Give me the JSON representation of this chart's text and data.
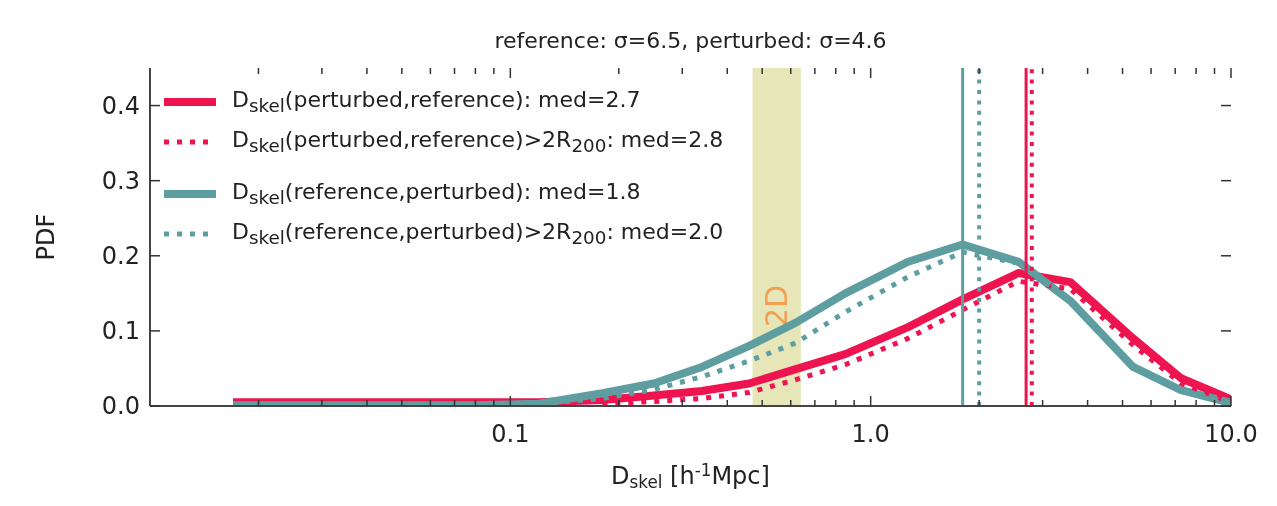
{
  "chart_data": {
    "type": "line",
    "subtitle": "reference: σ=6.5, perturbed: σ=4.6",
    "xlabel": "D$_{skel}$ [h$^{-1}$Mpc]",
    "ylabel": "PDF",
    "log": "x",
    "xlim": [
      0.01,
      10
    ],
    "ylim": [
      0,
      0.45
    ],
    "xticks": [
      {
        "value": 0.02,
        "label": null
      },
      {
        "value": 0.03,
        "label": null
      },
      {
        "value": 0.04,
        "label": null
      },
      {
        "value": 0.05,
        "label": null
      },
      {
        "value": 0.06,
        "label": null
      },
      {
        "value": 0.07,
        "label": null
      },
      {
        "value": 0.08,
        "label": null
      },
      {
        "value": 0.09,
        "label": null
      },
      {
        "value": 0.1,
        "label": "0.1"
      },
      {
        "value": 0.2,
        "label": null
      },
      {
        "value": 0.3,
        "label": null
      },
      {
        "value": 0.4,
        "label": null
      },
      {
        "value": 0.5,
        "label": null
      },
      {
        "value": 0.6,
        "label": null
      },
      {
        "value": 0.7,
        "label": null
      },
      {
        "value": 0.8,
        "label": null
      },
      {
        "value": 0.9,
        "label": null
      },
      {
        "value": 1,
        "label": "1.0"
      },
      {
        "value": 2,
        "label": null
      },
      {
        "value": 3,
        "label": null
      },
      {
        "value": 4,
        "label": null
      },
      {
        "value": 5,
        "label": null
      },
      {
        "value": 6,
        "label": null
      },
      {
        "value": 7,
        "label": null
      },
      {
        "value": 8,
        "label": null
      },
      {
        "value": 9,
        "label": null
      },
      {
        "value": 10,
        "label": "10.0"
      }
    ],
    "yticks": [
      {
        "value": 0,
        "label": "0.0"
      },
      {
        "value": 0.1,
        "label": "0.1"
      },
      {
        "value": 0.2,
        "label": "0.2"
      },
      {
        "value": 0.3,
        "label": "0.3"
      },
      {
        "value": 0.4,
        "label": "0.4"
      }
    ],
    "x": [
      0.017,
      0.03,
      0.05,
      0.08,
      0.12,
      0.18,
      0.25,
      0.34,
      0.46,
      0.62,
      0.85,
      1.27,
      1.8,
      2.57,
      3.58,
      5.35,
      7.27,
      10
    ],
    "series": [
      {
        "name": "D$_{skel}$(perturbed,reference): med=2.7",
        "color": "#ee1450",
        "line_style": "solid",
        "values": [
          0.005,
          0.005,
          0.005,
          0.005,
          0.005,
          0.008,
          0.014,
          0.02,
          0.03,
          0.049,
          0.069,
          0.105,
          0.142,
          0.177,
          0.165,
          0.09,
          0.037,
          0.009
        ]
      },
      {
        "name": "D$_{skel}$(perturbed,reference)>2R$_{200}$: med=2.8",
        "color": "#ee1450",
        "line_style": "dotted",
        "values": [
          null,
          null,
          null,
          null,
          null,
          0.003,
          0.006,
          0.01,
          0.018,
          0.035,
          0.055,
          0.09,
          0.128,
          0.166,
          0.156,
          0.081,
          0.03,
          0.005
        ]
      },
      {
        "name": "D$_{skel}$(reference,perturbed): med=1.8",
        "color": "#5f9ea0",
        "line_style": "solid",
        "values": [
          0.001,
          0.001,
          0.001,
          0.001,
          0.003,
          0.017,
          0.03,
          0.052,
          0.08,
          0.111,
          0.15,
          0.192,
          0.215,
          0.192,
          0.14,
          0.052,
          0.021,
          0.004
        ]
      },
      {
        "name": "D$_{skel}$(reference,perturbed)>2R$_{200}$: med=2.0",
        "color": "#5f9ea0",
        "line_style": "dotted",
        "values": [
          null,
          null,
          null,
          null,
          0.003,
          0.01,
          0.022,
          0.039,
          0.06,
          0.084,
          0.125,
          0.172,
          0.205,
          0.19,
          0.14,
          0.052,
          0.021,
          0.004
        ]
      }
    ],
    "ref_lines": [
      {
        "axis": "x",
        "value": 1.8,
        "color": "#5f9ea0",
        "line_style": "solid"
      },
      {
        "axis": "x",
        "value": 2.0,
        "color": "#5f9ea0",
        "line_style": "dotted"
      },
      {
        "axis": "x",
        "value": 2.7,
        "color": "#ee1450",
        "line_style": "solid"
      },
      {
        "axis": "x",
        "value": 2.8,
        "color": "#ee1450",
        "line_style": "dotted"
      }
    ],
    "bands": [
      {
        "axis": "x",
        "from": 0.47,
        "to": 0.64,
        "label": "2D",
        "color": "#e6e6b8"
      }
    ],
    "legend": "top left"
  }
}
